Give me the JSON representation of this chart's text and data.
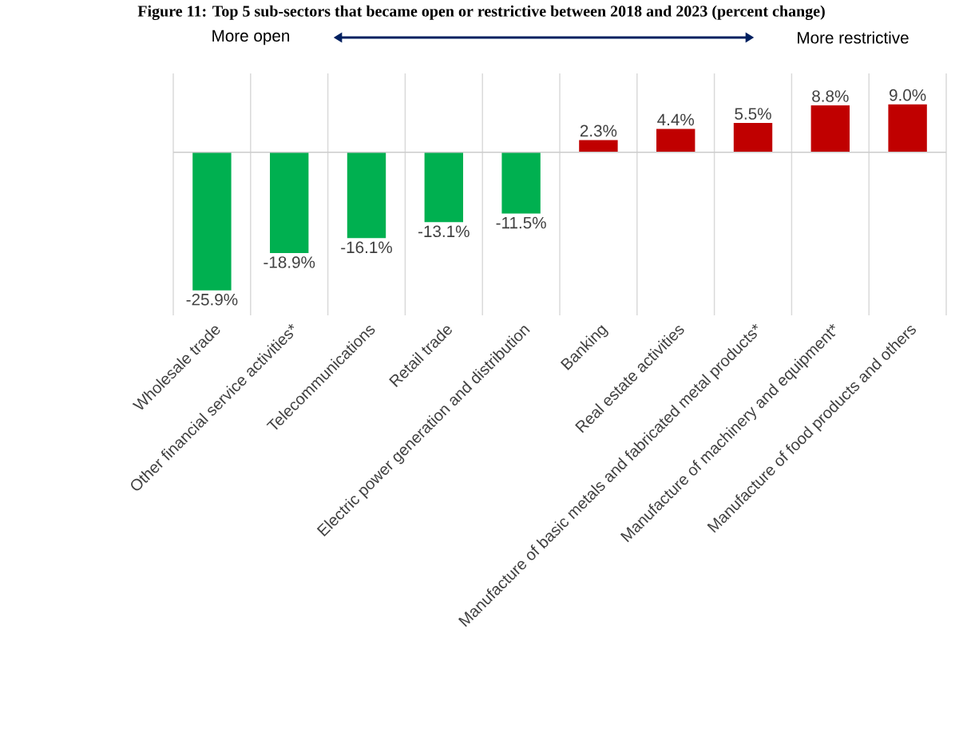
{
  "chart_data": {
    "type": "bar",
    "title": "Figure 11: Top 5 sub-sectors that became open or restrictive between 2018 and 2023 (percent change)",
    "annotations": [
      "More open",
      "More restrictive"
    ],
    "categories": [
      "Wholesale trade",
      "Other financial service activities*",
      "Telecommunications",
      "Retail trade",
      "Electric power generation and distribution",
      "Banking",
      "Real estate activities",
      "Manufacture of basic metals and fabricated metal products*",
      "Manufacture of machinery and equipment*",
      "Manufacture of food products and others"
    ],
    "values": [
      -25.9,
      -18.9,
      -16.1,
      -13.1,
      -11.5,
      2.3,
      4.4,
      5.5,
      8.8,
      9.0
    ],
    "value_labels": [
      "-25.9%",
      "-18.9%",
      "-16.1%",
      "-13.1%",
      "-11.5%",
      "2.3%",
      "4.4%",
      "5.5%",
      "8.8%",
      "9.0%"
    ],
    "colors": [
      "#00b050",
      "#00b050",
      "#00b050",
      "#00b050",
      "#00b050",
      "#c00000",
      "#c00000",
      "#c00000",
      "#c00000",
      "#c00000"
    ],
    "ylim": [
      -30.6,
      14.8
    ],
    "grid": "x"
  }
}
